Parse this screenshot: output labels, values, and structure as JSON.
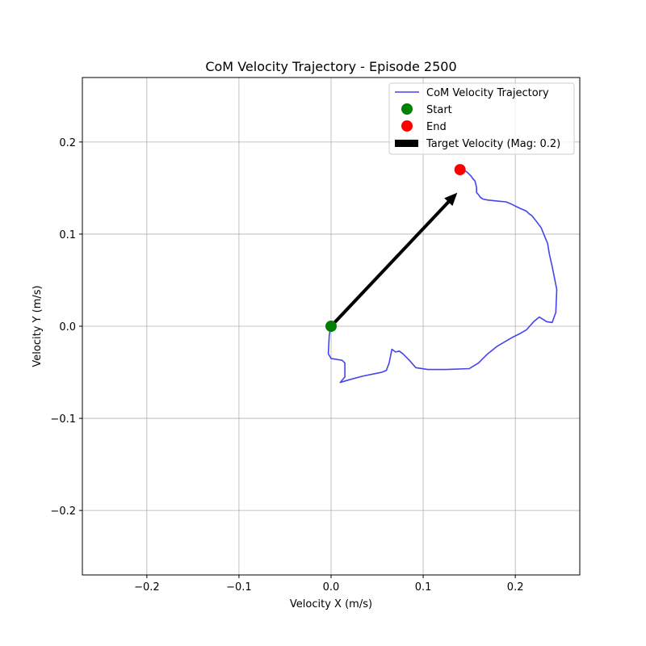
{
  "chart_data": {
    "type": "line",
    "title": "CoM Velocity Trajectory - Episode 2500",
    "xlabel": "Velocity X (m/s)",
    "ylabel": "Velocity Y (m/s)",
    "xlim": [
      -0.27,
      0.27
    ],
    "ylim": [
      -0.27,
      0.27
    ],
    "xticks": [
      -0.2,
      -0.1,
      0.0,
      0.1,
      0.2
    ],
    "yticks": [
      -0.2,
      -0.1,
      0.0,
      0.1,
      0.2
    ],
    "xtick_labels": [
      "−0.2",
      "−0.1",
      "0.0",
      "0.1",
      "0.2"
    ],
    "ytick_labels": [
      "−0.2",
      "−0.1",
      "0.0",
      "0.1",
      "0.2"
    ],
    "grid": true,
    "legend_position": "top-right",
    "series": [
      {
        "name": "CoM Velocity Trajectory",
        "kind": "line",
        "color": "#4444ee",
        "x": [
          0.0,
          -0.002,
          -0.003,
          0.0,
          0.012,
          0.015,
          0.015,
          0.01,
          0.02,
          0.035,
          0.05,
          0.055,
          0.06,
          0.063,
          0.066,
          0.07,
          0.074,
          0.078,
          0.085,
          0.092,
          0.105,
          0.125,
          0.15,
          0.16,
          0.17,
          0.18,
          0.19,
          0.197,
          0.205,
          0.212,
          0.22,
          0.226,
          0.234,
          0.24,
          0.244,
          0.245,
          0.243,
          0.24,
          0.237,
          0.235,
          0.228,
          0.222,
          0.218,
          0.215,
          0.212,
          0.205,
          0.195,
          0.19,
          0.18,
          0.17,
          0.165,
          0.162,
          0.16,
          0.158,
          0.158,
          0.157,
          0.156,
          0.154,
          0.152,
          0.15,
          0.148,
          0.145,
          0.14
        ],
        "y": [
          0.0,
          -0.01,
          -0.03,
          -0.035,
          -0.037,
          -0.04,
          -0.055,
          -0.061,
          -0.058,
          -0.054,
          -0.051,
          -0.05,
          -0.048,
          -0.04,
          -0.025,
          -0.028,
          -0.027,
          -0.03,
          -0.037,
          -0.045,
          -0.047,
          -0.047,
          -0.046,
          -0.04,
          -0.03,
          -0.022,
          -0.016,
          -0.012,
          -0.008,
          -0.004,
          0.005,
          0.01,
          0.005,
          0.004,
          0.015,
          0.04,
          0.05,
          0.065,
          0.078,
          0.09,
          0.107,
          0.115,
          0.12,
          0.122,
          0.125,
          0.128,
          0.133,
          0.135,
          0.136,
          0.137,
          0.138,
          0.14,
          0.143,
          0.145,
          0.15,
          0.155,
          0.158,
          0.16,
          0.163,
          0.165,
          0.167,
          0.169,
          0.17
        ]
      },
      {
        "name": "Start",
        "kind": "marker",
        "color": "#008000",
        "x": [
          0.0
        ],
        "y": [
          0.0
        ]
      },
      {
        "name": "End",
        "kind": "marker",
        "color": "#ff0000",
        "x": [
          0.14
        ],
        "y": [
          0.17
        ]
      },
      {
        "name": "Target Velocity (Mag: 0.2)",
        "kind": "arrow",
        "color": "#000000",
        "x": [
          0.0,
          0.137
        ],
        "y": [
          0.0,
          0.145
        ]
      }
    ]
  }
}
